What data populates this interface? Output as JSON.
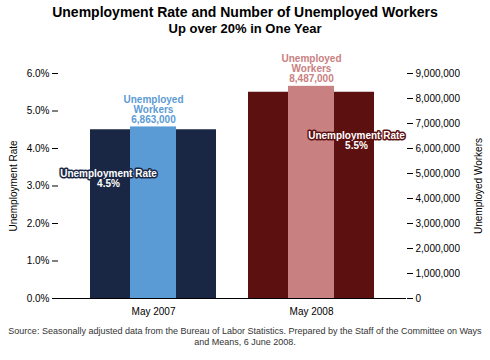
{
  "chart_data": {
    "type": "bar",
    "title": "Unemployment Rate and Number of Unemployed Workers",
    "subtitle": "Up over 20% in One Year",
    "caption": "Source: Seasonally adjusted data from the Bureau of Labor Statistics. Prepared by the Staff of the Committee on Ways and Means, 6 June 2008.",
    "categories": [
      "May 2007",
      "May 2008"
    ],
    "series": [
      {
        "name": "Unemployment Rate",
        "axis": "y",
        "colors": [
          "#1a2744",
          "#5c1010"
        ],
        "values": [
          4.5,
          5.5
        ],
        "value_labels": [
          "Unemployment Rate\n4.5%",
          "Unemployment Rate\n5.5%"
        ]
      },
      {
        "name": "Unemployed Workers",
        "axis": "y2",
        "colors": [
          "#5b9bd5",
          "#c98080"
        ],
        "values": [
          6863000,
          8487000
        ],
        "value_labels": [
          "Unemployed\nWorkers\n6,863,000",
          "Unemployed\nWorkers\n8,487,000"
        ]
      }
    ],
    "ylabel": "Unemployment Rate",
    "y2label": "Unemployed Workers",
    "ylim": [
      0.0,
      6.0
    ],
    "yticks": [
      {
        "value": 0,
        "label": "0.0%"
      },
      {
        "value": 1,
        "label": "1.0%"
      },
      {
        "value": 2,
        "label": "2.0%"
      },
      {
        "value": 3,
        "label": "3.0%"
      },
      {
        "value": 4,
        "label": "4.0%"
      },
      {
        "value": 5,
        "label": "5.0%"
      },
      {
        "value": 6,
        "label": "6.0%"
      }
    ],
    "y2lim": [
      0,
      9000000
    ],
    "y2ticks": [
      0,
      {
        "value": 1000000,
        "label": "1,000,000"
      },
      {
        "value": 2000000,
        "label": "2,000,000"
      },
      {
        "value": 3000000,
        "label": "3,000,000"
      },
      {
        "value": 4000000,
        "label": "4,000,000"
      },
      {
        "value": 5000000,
        "label": "5,000,000"
      },
      {
        "value": 6000000,
        "label": "6,000,000"
      },
      {
        "value": 7000000,
        "label": "7,000,000"
      },
      {
        "value": 8000000,
        "label": "8,000,000"
      },
      {
        "value": 9000000,
        "label": "9,000,000"
      }
    ],
    "grid": false,
    "data_labels": true
  }
}
